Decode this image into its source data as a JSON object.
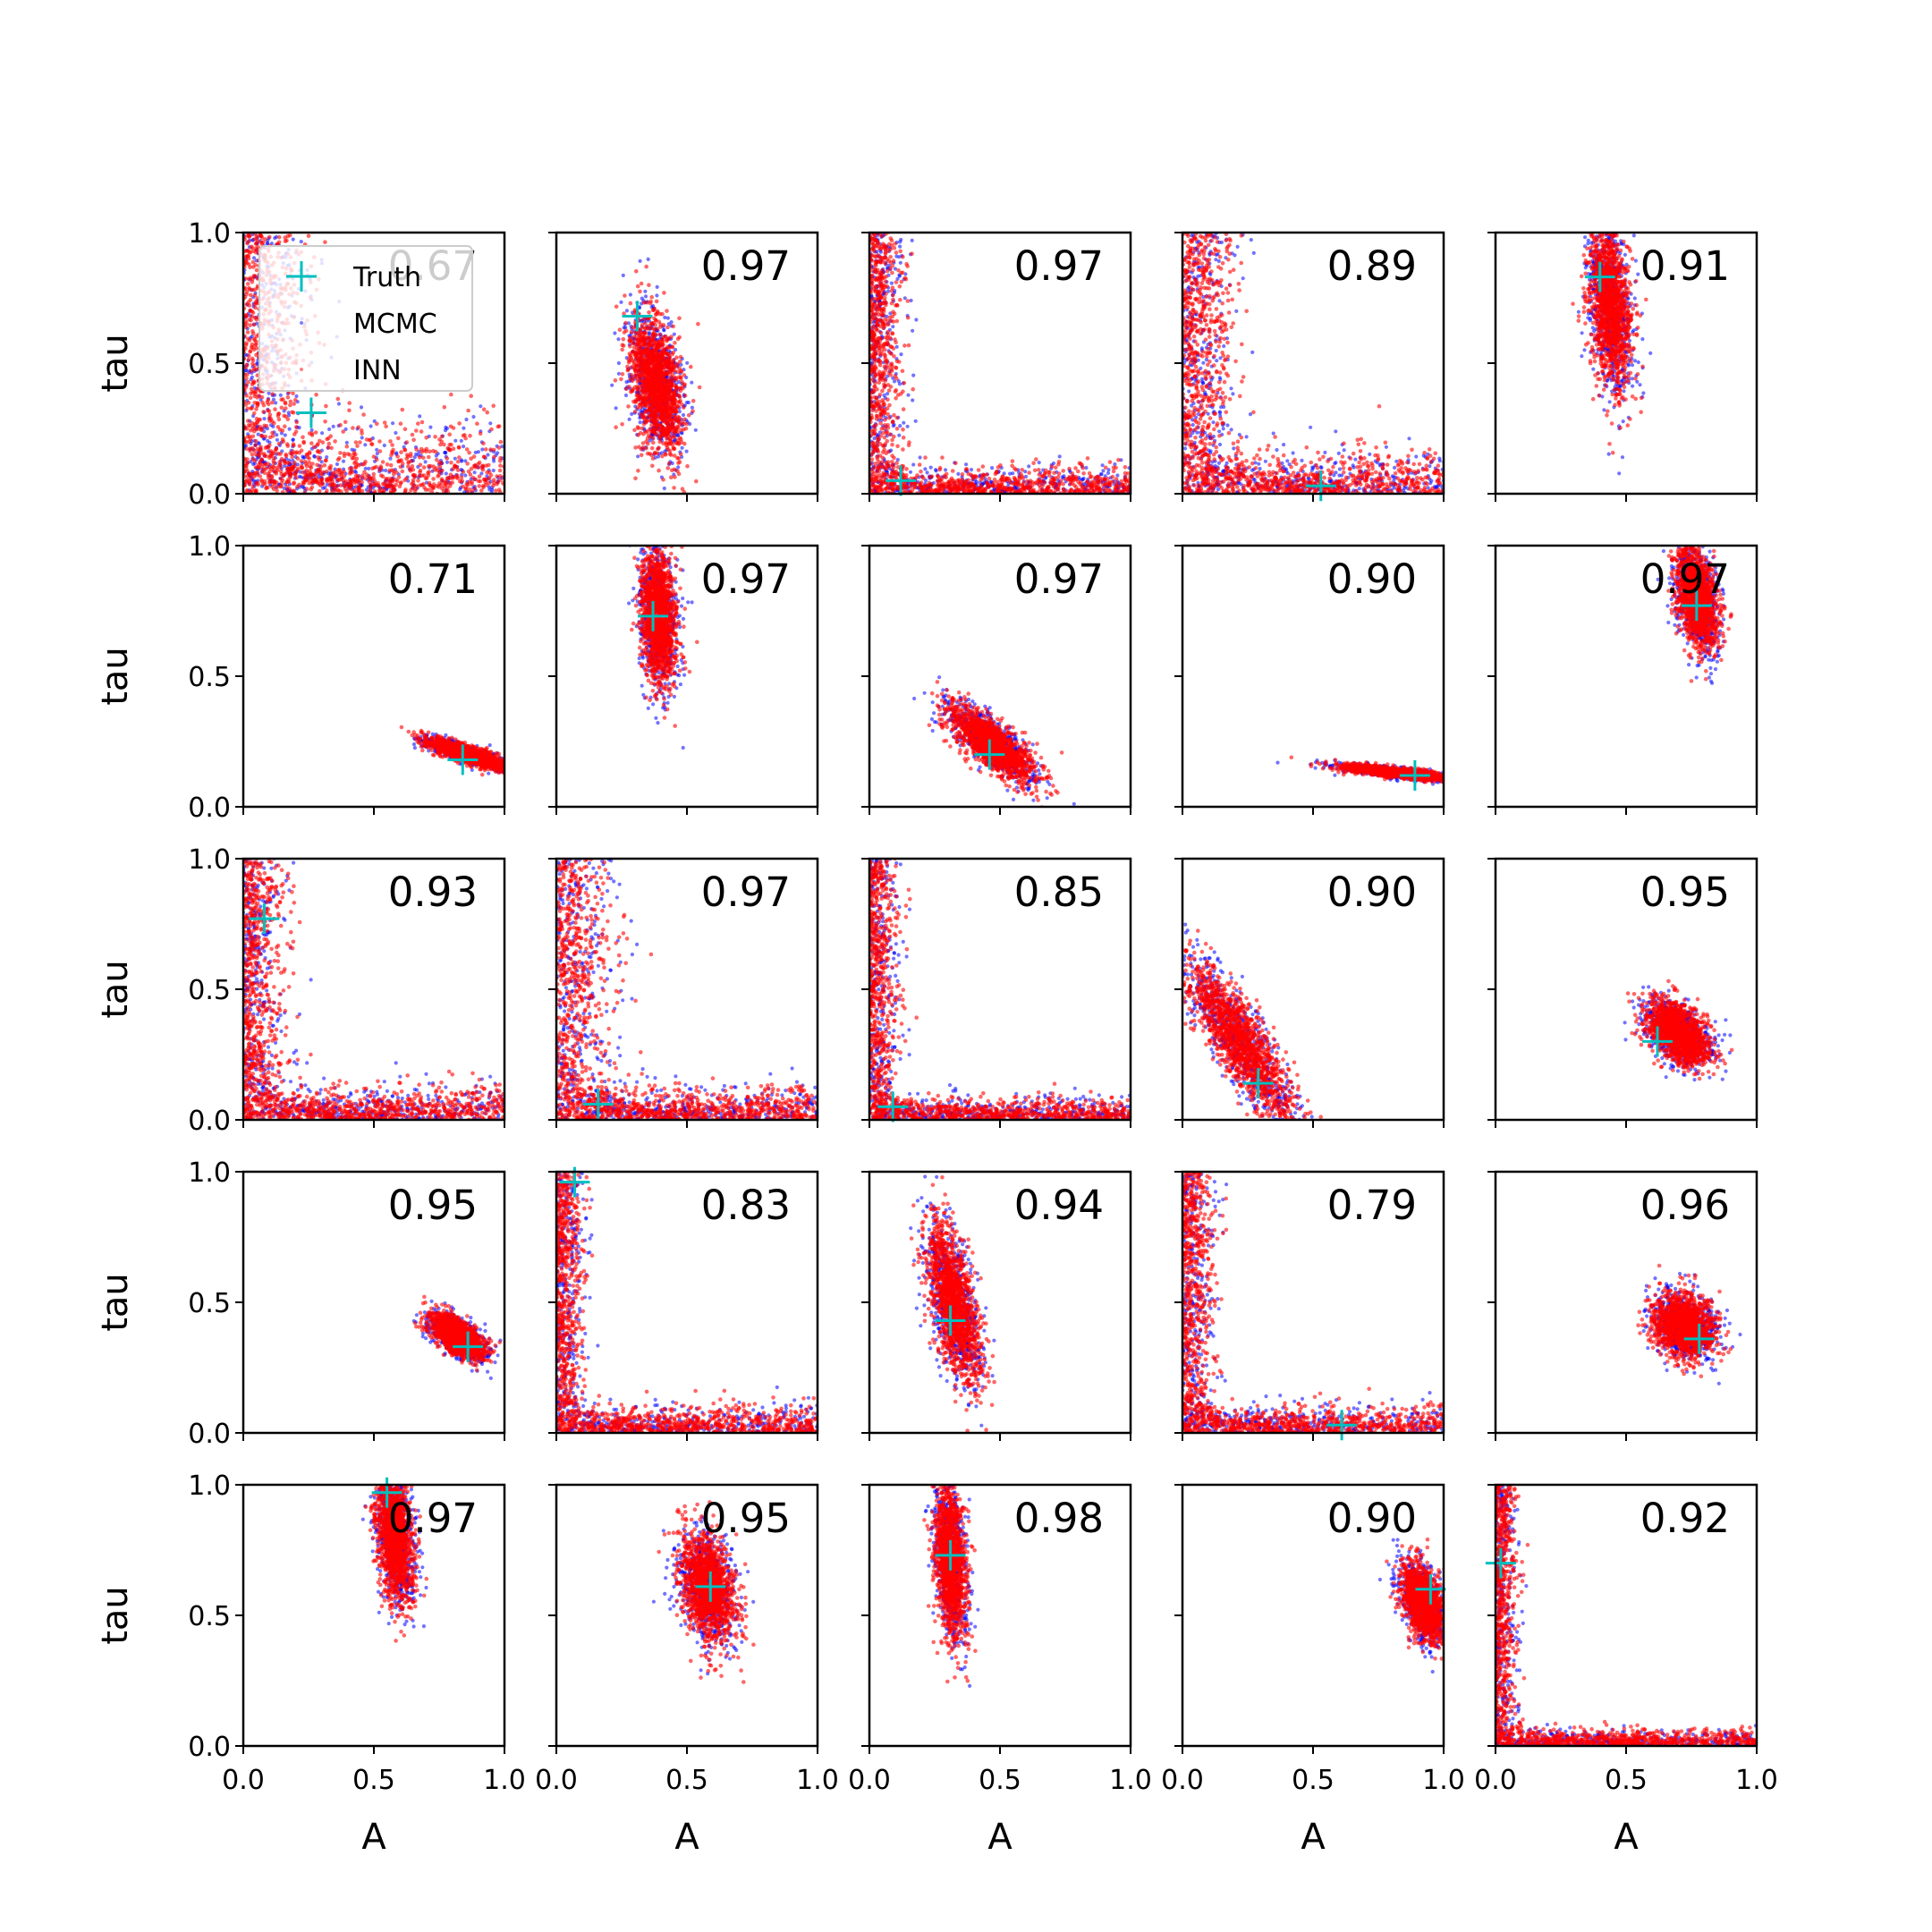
{
  "legend": {
    "entries": [
      {
        "label": "Truth",
        "color": "#00bfbf",
        "marker": "plus"
      },
      {
        "label": "MCMC",
        "color": "#0000ff",
        "marker": "dot"
      },
      {
        "label": "INN",
        "color": "#ff0000",
        "marker": "dot"
      }
    ]
  },
  "chart_data": {
    "type": "scatter",
    "layout": "5x5 grid of subplots",
    "xlabel": "A",
    "ylabel": "tau",
    "xlim": [
      0,
      1
    ],
    "ylim": [
      0,
      1
    ],
    "xticks": [
      "0.0",
      "0.5",
      "1.0"
    ],
    "yticks": [
      "0.0",
      "0.5",
      "1.0"
    ],
    "series_colors": {
      "MCMC": "#0000ff",
      "INN": "#ff0000",
      "Truth": "#00bfbf"
    },
    "panels": [
      {
        "score": "0.67",
        "truth": [
          0.26,
          0.31
        ],
        "shape": "L",
        "cx": 0.12,
        "cy": 0.12
      },
      {
        "score": "0.97",
        "truth": [
          0.31,
          0.68
        ],
        "shape": "blob",
        "cx": 0.38,
        "cy": 0.42,
        "sx": 0.05,
        "sy": 0.13,
        "rho": -0.35
      },
      {
        "score": "0.97",
        "truth": [
          0.12,
          0.05
        ],
        "shape": "L",
        "cx": 0.06,
        "cy": 0.05
      },
      {
        "score": "0.89",
        "truth": [
          0.53,
          0.03
        ],
        "shape": "L",
        "cx": 0.09,
        "cy": 0.08
      },
      {
        "score": "0.91",
        "truth": [
          0.4,
          0.83
        ],
        "shape": "blob",
        "cx": 0.44,
        "cy": 0.72,
        "sx": 0.04,
        "sy": 0.16,
        "rho": -0.3
      },
      {
        "score": "0.71",
        "truth": [
          0.84,
          0.18
        ],
        "shape": "blob",
        "cx": 0.86,
        "cy": 0.2,
        "sx": 0.08,
        "sy": 0.03,
        "rho": -0.85
      },
      {
        "score": "0.97",
        "truth": [
          0.37,
          0.73
        ],
        "shape": "blob",
        "cx": 0.39,
        "cy": 0.73,
        "sx": 0.035,
        "sy": 0.13,
        "rho": -0.2
      },
      {
        "score": "0.97",
        "truth": [
          0.46,
          0.2
        ],
        "shape": "blob",
        "cx": 0.47,
        "cy": 0.24,
        "sx": 0.08,
        "sy": 0.07,
        "rho": -0.75
      },
      {
        "score": "0.90",
        "truth": [
          0.89,
          0.12
        ],
        "shape": "blob",
        "cx": 0.83,
        "cy": 0.13,
        "sx": 0.11,
        "sy": 0.015,
        "rho": -0.8
      },
      {
        "score": "0.97",
        "truth": [
          0.77,
          0.77
        ],
        "shape": "blob",
        "cx": 0.77,
        "cy": 0.8,
        "sx": 0.04,
        "sy": 0.1,
        "rho": -0.4
      },
      {
        "score": "0.93",
        "truth": [
          0.08,
          0.77
        ],
        "shape": "L",
        "cx": 0.07,
        "cy": 0.06
      },
      {
        "score": "0.97",
        "truth": [
          0.16,
          0.06
        ],
        "shape": "L",
        "cx": 0.1,
        "cy": 0.06
      },
      {
        "score": "0.85",
        "truth": [
          0.09,
          0.05
        ],
        "shape": "L",
        "cx": 0.05,
        "cy": 0.04
      },
      {
        "score": "0.90",
        "truth": [
          0.29,
          0.14
        ],
        "shape": "blob",
        "cx": 0.22,
        "cy": 0.3,
        "sx": 0.1,
        "sy": 0.15,
        "rho": -0.85
      },
      {
        "score": "0.95",
        "truth": [
          0.62,
          0.3
        ],
        "shape": "blob",
        "cx": 0.7,
        "cy": 0.33,
        "sx": 0.06,
        "sy": 0.06,
        "rho": -0.45
      },
      {
        "score": "0.95",
        "truth": [
          0.86,
          0.33
        ],
        "shape": "blob",
        "cx": 0.82,
        "cy": 0.37,
        "sx": 0.05,
        "sy": 0.04,
        "rho": -0.6
      },
      {
        "score": "0.83",
        "truth": [
          0.07,
          0.96
        ],
        "shape": "L",
        "cx": 0.05,
        "cy": 0.05
      },
      {
        "score": "0.94",
        "truth": [
          0.31,
          0.43
        ],
        "shape": "blob",
        "cx": 0.32,
        "cy": 0.5,
        "sx": 0.05,
        "sy": 0.15,
        "rho": -0.6
      },
      {
        "score": "0.79",
        "truth": [
          0.61,
          0.03
        ],
        "shape": "L",
        "cx": 0.06,
        "cy": 0.05
      },
      {
        "score": "0.96",
        "truth": [
          0.78,
          0.36
        ],
        "shape": "blob",
        "cx": 0.72,
        "cy": 0.41,
        "sx": 0.06,
        "sy": 0.06,
        "rho": -0.2
      },
      {
        "score": "0.97",
        "truth": [
          0.55,
          0.97
        ],
        "shape": "blob",
        "cx": 0.58,
        "cy": 0.8,
        "sx": 0.035,
        "sy": 0.12,
        "rho": -0.3
      },
      {
        "score": "0.95",
        "truth": [
          0.59,
          0.61
        ],
        "shape": "blob",
        "cx": 0.58,
        "cy": 0.61,
        "sx": 0.05,
        "sy": 0.1,
        "rho": -0.3
      },
      {
        "score": "0.98",
        "truth": [
          0.31,
          0.73
        ],
        "shape": "blob",
        "cx": 0.31,
        "cy": 0.71,
        "sx": 0.03,
        "sy": 0.15,
        "rho": -0.3
      },
      {
        "score": "0.90",
        "truth": [
          0.95,
          0.6
        ],
        "shape": "blob",
        "cx": 0.92,
        "cy": 0.55,
        "sx": 0.04,
        "sy": 0.07,
        "rho": -0.4
      },
      {
        "score": "0.92",
        "truth": [
          0.02,
          0.7
        ],
        "shape": "L",
        "cx": 0.04,
        "cy": 0.03
      }
    ]
  }
}
